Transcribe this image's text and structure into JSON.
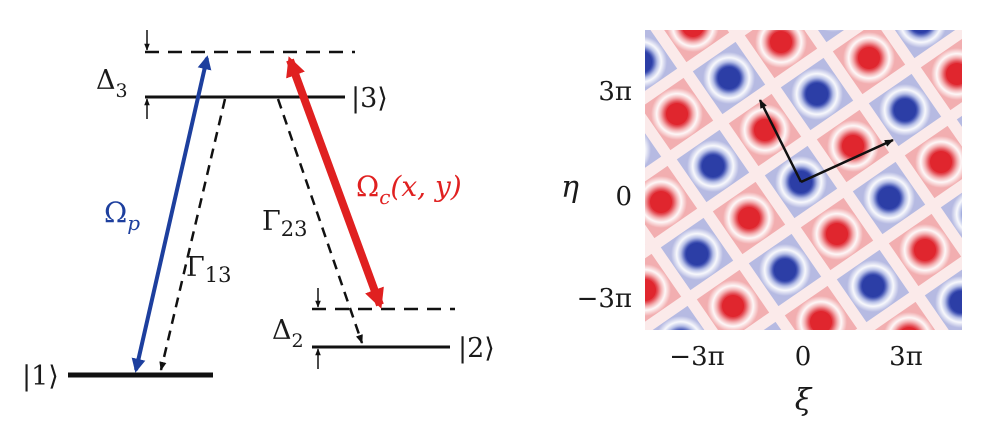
{
  "level_diagram": {
    "states": {
      "ground": "|1⟩",
      "lower": "|2⟩",
      "excited": "|3⟩"
    },
    "detunings": {
      "excited": {
        "symbol": "Δ",
        "index": "3"
      },
      "lower": {
        "symbol": "Δ",
        "index": "2"
      }
    },
    "probe": {
      "symbol": "Ω",
      "index": "p"
    },
    "coupling": {
      "symbol": "Ω",
      "index": "c",
      "args": "(x, y)"
    },
    "decays": [
      {
        "symbol": "Γ",
        "index": "13"
      },
      {
        "symbol": "Γ",
        "index": "23"
      }
    ],
    "colors": {
      "probe": "#1d3f9e",
      "coupling": "#e02020",
      "levels": "#111111",
      "decay": "#111111"
    }
  },
  "lattice_plot": {
    "x_axis": {
      "label": "ξ",
      "ticks": [
        "−3π",
        "0",
        "3π"
      ]
    },
    "y_axis": {
      "label": "η",
      "ticks": [
        "3π",
        "0",
        "−3π"
      ]
    },
    "colors": {
      "positive": "#e0262e",
      "negative": "#2c3ea6",
      "background": "#ffffff"
    },
    "vector_color": "#111111"
  }
}
